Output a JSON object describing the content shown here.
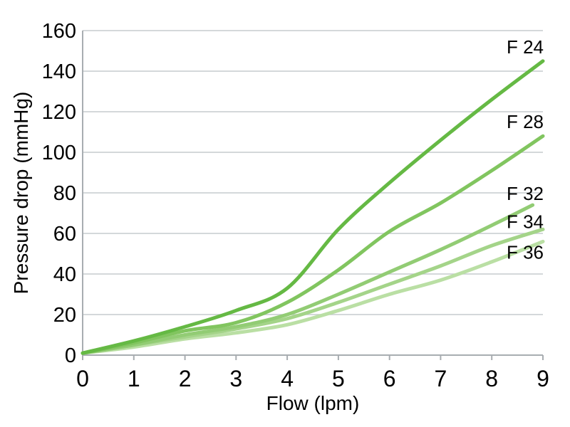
{
  "chart_data": {
    "type": "line",
    "title": "",
    "xlabel": "Flow (lpm)",
    "ylabel": "Pressure drop (mmHg)",
    "xlim": [
      0,
      9
    ],
    "ylim": [
      0,
      160
    ],
    "x_ticks": [
      "0",
      "1",
      "2",
      "3",
      "4",
      "5",
      "6",
      "7",
      "8",
      "9"
    ],
    "y_ticks": [
      "0",
      "20",
      "40",
      "60",
      "80",
      "100",
      "120",
      "140",
      "160"
    ],
    "grid": "horizontal-only",
    "legend_position": "end-of-line-labels",
    "series": [
      {
        "name": "F 24",
        "color": "#65b944",
        "label_dy": -20,
        "points": [
          [
            0,
            1
          ],
          [
            1,
            7
          ],
          [
            2,
            14
          ],
          [
            3,
            22
          ],
          [
            4,
            33
          ],
          [
            5,
            62
          ],
          [
            6,
            85
          ],
          [
            7,
            106
          ],
          [
            8,
            126
          ],
          [
            9,
            145
          ]
        ]
      },
      {
        "name": "F 28",
        "color": "#81c55f",
        "label_dy": -20,
        "points": [
          [
            0,
            1
          ],
          [
            1,
            6
          ],
          [
            2,
            12
          ],
          [
            3,
            16
          ],
          [
            4,
            26
          ],
          [
            5,
            42
          ],
          [
            6,
            61
          ],
          [
            7,
            75
          ],
          [
            8,
            91
          ],
          [
            9,
            108
          ]
        ]
      },
      {
        "name": "F 32",
        "color": "#92cc74",
        "label_dy": -16,
        "points": [
          [
            0,
            1
          ],
          [
            1,
            5
          ],
          [
            2,
            10
          ],
          [
            3,
            14
          ],
          [
            4,
            20
          ],
          [
            5,
            30
          ],
          [
            6,
            41
          ],
          [
            7,
            52
          ],
          [
            8,
            64
          ],
          [
            8.8,
            74
          ]
        ]
      },
      {
        "name": "F 34",
        "color": "#a4d489",
        "label_dy": -11,
        "points": [
          [
            0,
            1
          ],
          [
            1,
            5
          ],
          [
            2,
            9
          ],
          [
            3,
            13
          ],
          [
            4,
            18
          ],
          [
            5,
            26
          ],
          [
            6,
            35
          ],
          [
            7,
            44
          ],
          [
            8,
            54
          ],
          [
            9,
            62
          ]
        ]
      },
      {
        "name": "F 36",
        "color": "#badfa4",
        "label_dy": 15,
        "points": [
          [
            0,
            1
          ],
          [
            1,
            4
          ],
          [
            2,
            8
          ],
          [
            3,
            11
          ],
          [
            4,
            15
          ],
          [
            5,
            22
          ],
          [
            6,
            30
          ],
          [
            7,
            37
          ],
          [
            8,
            46
          ],
          [
            9,
            56
          ]
        ]
      }
    ]
  },
  "colors": {
    "gridline": "#c6cbce",
    "axis": "#a8adb1",
    "tick_label": "#000000",
    "series_label": "#000000",
    "background": "#ffffff"
  }
}
